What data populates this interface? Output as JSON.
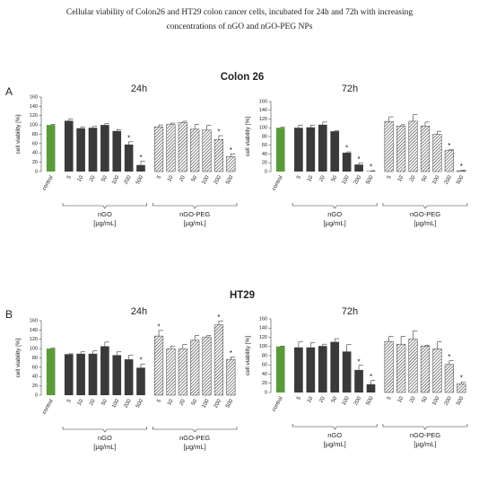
{
  "title": "Cellular viability of Colon26 and HT29 colon cancer cells, incubated for 24h and 72h with increasing concentrations of nGO and nGO-PEG NPs",
  "sections": [
    {
      "letter": "A",
      "name": "Colon 26"
    },
    {
      "letter": "B",
      "name": "HT29"
    }
  ],
  "chart_data": [
    {
      "type": "bar",
      "title": "24h",
      "y_label": "cell viability [%]",
      "ylim": [
        0,
        160
      ],
      "yticks": [
        0,
        20,
        40,
        60,
        80,
        100,
        120,
        140,
        160
      ],
      "control": {
        "label": "control",
        "value": 100,
        "error": 1,
        "color": "#5a9a3a"
      },
      "groups": [
        {
          "name": "nGO",
          "unit": "[µg/mL]",
          "color": "#3a3a3a",
          "pattern": "solid",
          "categories": [
            "5",
            "10",
            "20",
            "50",
            "100",
            "200",
            "500"
          ],
          "values": [
            109,
            93,
            94,
            100,
            87,
            58,
            14
          ],
          "errors": [
            4,
            3,
            3,
            3,
            3,
            6,
            8
          ],
          "markers": [
            null,
            null,
            null,
            null,
            null,
            "*",
            "*"
          ]
        },
        {
          "name": "nGO-PEG",
          "unit": "[µg/mL]",
          "color": "#444444",
          "pattern": "hatch",
          "categories": [
            "5",
            "10",
            "20",
            "50",
            "100",
            "200",
            "500"
          ],
          "values": [
            96,
            101,
            105,
            91,
            89,
            69,
            32
          ],
          "errors": [
            4,
            3,
            3,
            10,
            10,
            8,
            6
          ],
          "markers": [
            null,
            null,
            null,
            null,
            null,
            "*",
            "*"
          ]
        }
      ]
    },
    {
      "type": "bar",
      "title": "72h",
      "y_label": "cell viability [%]",
      "ylim": [
        0,
        160
      ],
      "yticks": [
        0,
        20,
        40,
        60,
        80,
        100,
        120,
        140,
        160
      ],
      "control": {
        "label": "control",
        "value": 100,
        "error": 1,
        "color": "#5a9a3a"
      },
      "groups": [
        {
          "name": "nGO",
          "unit": "[µg/mL]",
          "color": "#3a3a3a",
          "pattern": "solid",
          "categories": [
            "5",
            "10",
            "20",
            "50",
            "100",
            "200",
            "500"
          ],
          "values": [
            100,
            101,
            107,
            92,
            43,
            16,
            1
          ],
          "errors": [
            6,
            5,
            6,
            1,
            2,
            4,
            1
          ],
          "markers": [
            null,
            null,
            null,
            null,
            "*",
            "*",
            "*"
          ]
        },
        {
          "name": "nGO-PEG",
          "unit": "[µg/mL]",
          "color": "#444444",
          "pattern": "hatch",
          "categories": [
            "5",
            "10",
            "20",
            "50",
            "100",
            "200",
            "500"
          ],
          "values": [
            114,
            104,
            115,
            104,
            85,
            48,
            2
          ],
          "errors": [
            11,
            3,
            15,
            9,
            7,
            2,
            1
          ],
          "markers": [
            null,
            null,
            null,
            null,
            null,
            "*",
            "*"
          ]
        }
      ]
    },
    {
      "type": "bar",
      "title": "24h",
      "y_label": "cell viability [%]",
      "ylim": [
        0,
        160
      ],
      "yticks": [
        0,
        20,
        40,
        60,
        80,
        100,
        120,
        140,
        160
      ],
      "control": {
        "label": "control",
        "value": 100,
        "error": 1,
        "color": "#5a9a3a"
      },
      "groups": [
        {
          "name": "nGO",
          "unit": "[µg/mL]",
          "color": "#3a3a3a",
          "pattern": "solid",
          "categories": [
            "5",
            "10",
            "20",
            "50",
            "100",
            "200",
            "500"
          ],
          "values": [
            88,
            89,
            89,
            105,
            86,
            77,
            59
          ],
          "errors": [
            1,
            4,
            6,
            9,
            7,
            9,
            8
          ],
          "markers": [
            null,
            null,
            null,
            null,
            null,
            null,
            "*"
          ]
        },
        {
          "name": "nGO-PEG",
          "unit": "[µg/mL]",
          "color": "#444444",
          "pattern": "hatch",
          "categories": [
            "5",
            "10",
            "20",
            "50",
            "100",
            "200",
            "500"
          ],
          "values": [
            127,
            100,
            100,
            118,
            125,
            151,
            77
          ],
          "errors": [
            12,
            5,
            9,
            10,
            3,
            8,
            5
          ],
          "markers": [
            "*",
            null,
            null,
            null,
            null,
            "*",
            "*"
          ]
        }
      ]
    },
    {
      "type": "bar",
      "title": "72h",
      "y_label": "cell viability [%]",
      "ylim": [
        0,
        160
      ],
      "yticks": [
        0,
        20,
        40,
        60,
        80,
        100,
        120,
        140,
        160
      ],
      "control": {
        "label": "control",
        "value": 100,
        "error": 1,
        "color": "#5a9a3a"
      },
      "groups": [
        {
          "name": "nGO",
          "unit": "[µg/mL]",
          "color": "#3a3a3a",
          "pattern": "solid",
          "categories": [
            "5",
            "10",
            "20",
            "50",
            "100",
            "200",
            "500"
          ],
          "values": [
            98,
            98,
            101,
            110,
            89,
            49,
            18
          ],
          "errors": [
            12,
            10,
            4,
            7,
            15,
            10,
            8
          ],
          "markers": [
            null,
            null,
            null,
            null,
            null,
            "*",
            "*"
          ]
        },
        {
          "name": "nGO-PEG",
          "unit": "[µg/mL]",
          "color": "#444444",
          "pattern": "hatch",
          "categories": [
            "5",
            "10",
            "20",
            "50",
            "100",
            "200",
            "500"
          ],
          "values": [
            111,
            105,
            116,
            101,
            95,
            61,
            19
          ],
          "errors": [
            11,
            17,
            18,
            2,
            15,
            8,
            4
          ],
          "markers": [
            null,
            null,
            null,
            null,
            null,
            "*",
            "*"
          ]
        }
      ]
    }
  ]
}
